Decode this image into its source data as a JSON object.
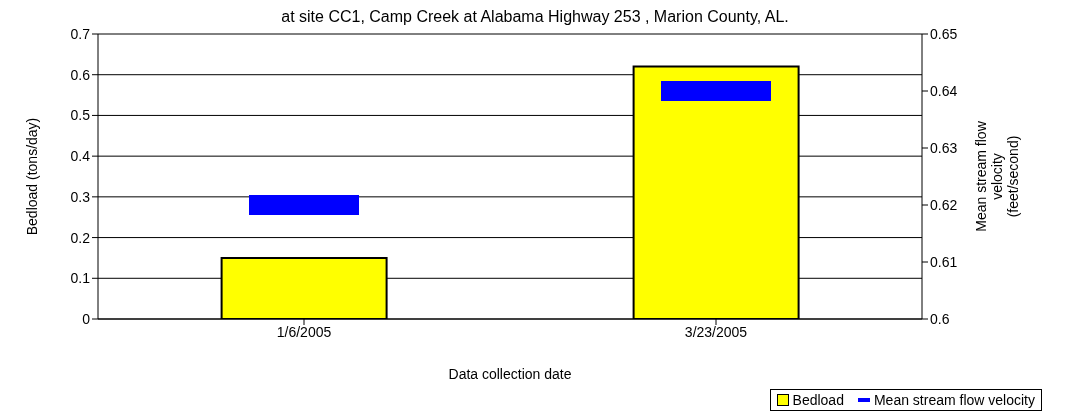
{
  "chart_data": {
    "type": "bar",
    "title": "at site CC1, Camp Creek at Alabama Highway 253 , Marion County, AL.",
    "xlabel": "Data collection date",
    "ylabel": "Bedload (tons/day)",
    "y2label": "Mean stream flow velocity (feet/second)",
    "categories": [
      "1/6/2005",
      "3/23/2005"
    ],
    "series": [
      {
        "name": "Bedload",
        "color": "#ffff00",
        "values": [
          0.15,
          0.62
        ]
      },
      {
        "name": "Mean stream flow velocity",
        "type": "scatter",
        "axis": "y2",
        "color": "#0000ff",
        "values": [
          0.62,
          0.64
        ]
      }
    ],
    "ylim": [
      0,
      0.7
    ],
    "yticks": [
      0,
      0.1,
      0.2,
      0.3,
      0.4,
      0.5,
      0.6,
      0.7
    ],
    "y2lim": [
      0.6,
      0.65
    ],
    "y2ticks": [
      0.6,
      0.61,
      0.62,
      0.63,
      0.64,
      0.65
    ],
    "grid": "y",
    "legend": "bottom right"
  }
}
